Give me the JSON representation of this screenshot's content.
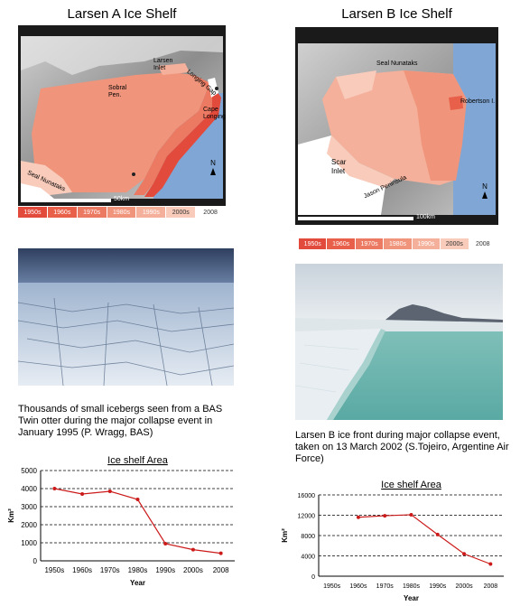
{
  "larsen_a": {
    "title": "Larsen A Ice Shelf",
    "map_labels": {
      "larsen_inlet": "Larsen\nInlet",
      "longing_gap": "Longing Gap",
      "sobral": "Sobral\nPen.",
      "cape_longing": "Cape\nLonging",
      "seal_nunataks": "Seal Nunataks",
      "north": "N",
      "scale": "50km"
    },
    "caption": "Thousands of small icebergs seen from a BAS Twin otter during the major collapse event in January 1995 (P. Wragg, BAS)"
  },
  "larsen_b": {
    "title": "Larsen B Ice Shelf",
    "map_labels": {
      "seal_nunataks": "Seal Nunataks",
      "robertson": "Robertson I.",
      "scar_inlet": "Scar\nInlet",
      "jason": "Jason Peninsula",
      "north": "N",
      "scale": "100km"
    },
    "caption": "Larsen B ice front during major collapse event, taken on 13 March 2002 (S.Tojeiro, Argentine Air Force)"
  },
  "legend": [
    {
      "label": "1950s",
      "color": "#e24a3c"
    },
    {
      "label": "1960s",
      "color": "#e8604a"
    },
    {
      "label": "1970s",
      "color": "#ec7a62"
    },
    {
      "label": "1980s",
      "color": "#f0957c"
    },
    {
      "label": "1990s",
      "color": "#f4b09a"
    },
    {
      "label": "2000s",
      "color": "#f8cbbb"
    },
    {
      "label": "2008",
      "color": "#ffffff"
    }
  ],
  "chart_data": [
    {
      "type": "line",
      "title": "Ice shelf Area",
      "xlabel": "Year",
      "ylabel": "Km²",
      "categories": [
        "1950s",
        "1960s",
        "1970s",
        "1980s",
        "1990s",
        "2000s",
        "2008"
      ],
      "values": [
        4000,
        3700,
        3850,
        3400,
        950,
        620,
        420
      ],
      "ylim": [
        0,
        5000
      ],
      "yticks": [
        0,
        1000,
        2000,
        3000,
        4000,
        5000
      ],
      "line_color": "#cc1a1a",
      "grid": true
    },
    {
      "type": "line",
      "title": "Ice shelf Area",
      "xlabel": "Year",
      "ylabel": "Km²",
      "categories": [
        "1950s",
        "1960s",
        "1970s",
        "1980s",
        "1990s",
        "2000s",
        "2008"
      ],
      "values": [
        null,
        11600,
        11900,
        12100,
        8200,
        4400,
        2400
      ],
      "ylim": [
        0,
        16000
      ],
      "yticks": [
        0,
        4000,
        8000,
        12000,
        16000
      ],
      "line_color": "#cc1a1a",
      "grid": true
    }
  ]
}
